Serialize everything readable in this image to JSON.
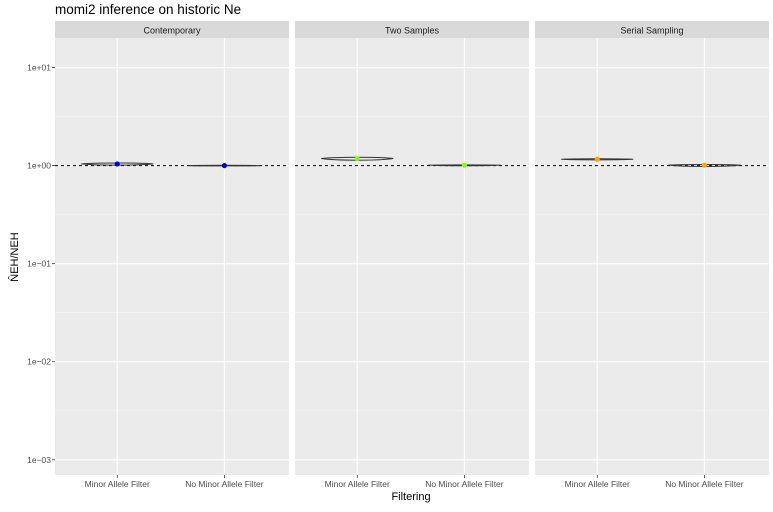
{
  "chart_data": {
    "type": "violin",
    "title": "momi2 inference on historic Ne",
    "xlabel": "Filtering",
    "ylabel": "N̂EH/NEH",
    "yscale": "log10",
    "ylim": [
      0.0007,
      20
    ],
    "yticks": [
      0.001,
      0.01,
      0.1,
      1,
      10
    ],
    "ytick_labels": [
      "1e−03",
      "1e−02",
      "1e−01",
      "1e+00",
      "1e+01"
    ],
    "categories": [
      "Minor Allele Filter",
      "No Minor Allele Filter"
    ],
    "reference_line": 1,
    "grid": true,
    "panels": [
      {
        "name": "Contemporary",
        "color": "#0000cc",
        "points": [
          {
            "category": "Minor Allele Filter",
            "median": 1.04,
            "min": 1.0,
            "max": 1.07
          },
          {
            "category": "No Minor Allele Filter",
            "median": 1.0,
            "min": 0.99,
            "max": 1.01
          }
        ]
      },
      {
        "name": "Two Samples",
        "color": "#7fff00",
        "points": [
          {
            "category": "Minor Allele Filter",
            "median": 1.18,
            "min": 1.12,
            "max": 1.23
          },
          {
            "category": "No Minor Allele Filter",
            "median": 1.01,
            "min": 0.99,
            "max": 1.02
          }
        ]
      },
      {
        "name": "Serial Sampling",
        "color": "#ffa500",
        "points": [
          {
            "category": "Minor Allele Filter",
            "median": 1.16,
            "min": 1.14,
            "max": 1.18
          },
          {
            "category": "No Minor Allele Filter",
            "median": 1.01,
            "min": 0.97,
            "max": 1.03
          }
        ]
      }
    ]
  }
}
